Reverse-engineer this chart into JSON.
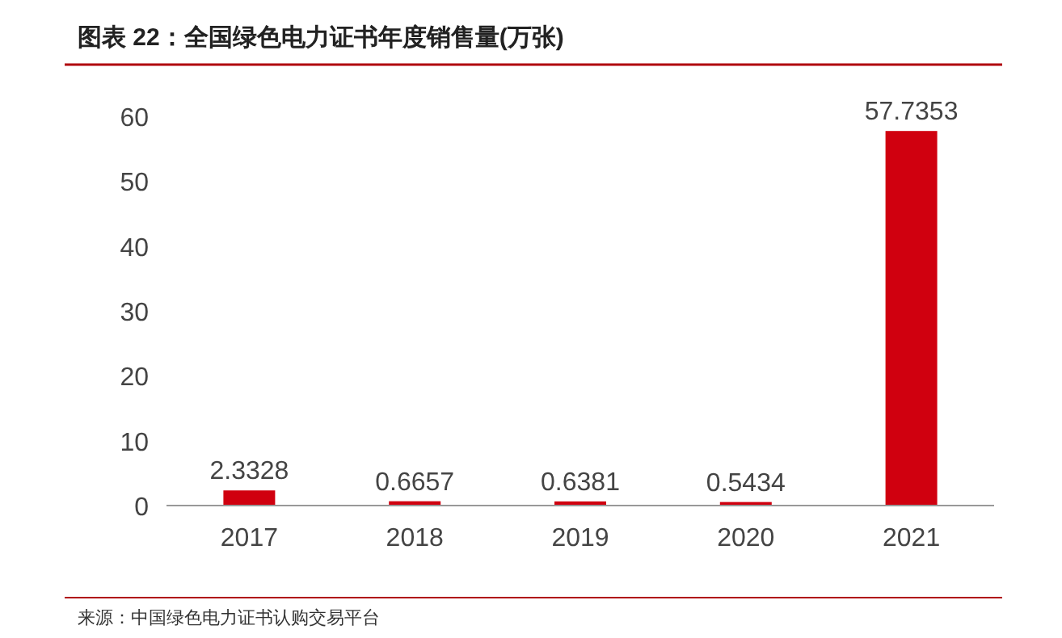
{
  "chart_data": {
    "type": "bar",
    "title": "图表 22：全国绿色电力证书年度销售量(万张)",
    "categories": [
      "2017",
      "2018",
      "2019",
      "2020",
      "2021"
    ],
    "values": [
      2.3328,
      0.6657,
      0.6381,
      0.5434,
      57.7353
    ],
    "color": "#d0000f",
    "ylim": [
      0,
      60
    ],
    "yticks": [
      0,
      10,
      20,
      30,
      40,
      50,
      60
    ],
    "data_labels": true,
    "annotations": [
      "来源：中国绿色电力证书认购交易平台"
    ]
  }
}
